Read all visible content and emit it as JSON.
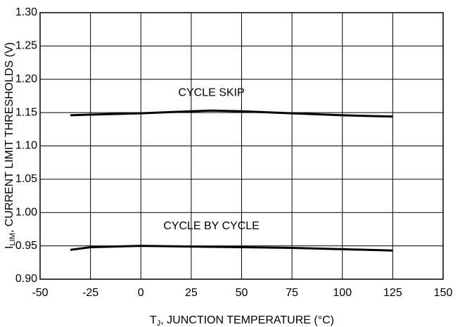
{
  "chart_data": {
    "type": "line",
    "annotations": [
      "CYCLE SKIP",
      "CYCLE BY CYCLE"
    ],
    "ylabel": {
      "symbol": "I",
      "subscript": "LIM",
      "text": ", CURRENT LIMIT THRESHOLDS (V)"
    },
    "xlabel": {
      "symbol": "T",
      "subscript": "J",
      "text": ", JUNCTION TEMPERATURE (°C)"
    },
    "series": [
      {
        "name": "CYCLE SKIP",
        "color": "#000000",
        "x": [
          -35,
          -25,
          0,
          25,
          35,
          50,
          75,
          100,
          125
        ],
        "values": [
          1.146,
          1.147,
          1.149,
          1.152,
          1.153,
          1.152,
          1.149,
          1.146,
          1.144
        ]
      },
      {
        "name": "CYCLE BY CYCLE",
        "color": "#000000",
        "x": [
          -35,
          -25,
          0,
          25,
          50,
          75,
          100,
          125
        ],
        "values": [
          0.944,
          0.948,
          0.95,
          0.949,
          0.948,
          0.947,
          0.945,
          0.943
        ]
      }
    ],
    "xlim": [
      -50,
      150
    ],
    "xticks": [
      -50,
      -25,
      0,
      25,
      50,
      75,
      100,
      125,
      150
    ],
    "ylim": [
      0.9,
      1.3
    ],
    "yticks": [
      {
        "value": 0.9,
        "label": "0.90"
      },
      {
        "value": 0.95,
        "label": "0.95"
      },
      {
        "value": 1.0,
        "label": "1.00"
      },
      {
        "value": 1.05,
        "label": "1.05"
      },
      {
        "value": 1.1,
        "label": "1.10"
      },
      {
        "value": 1.15,
        "label": "1.15"
      },
      {
        "value": 1.2,
        "label": "1.20"
      },
      {
        "value": 1.25,
        "label": "1.25"
      },
      {
        "value": 1.3,
        "label": "1.30"
      }
    ],
    "grid": true
  }
}
